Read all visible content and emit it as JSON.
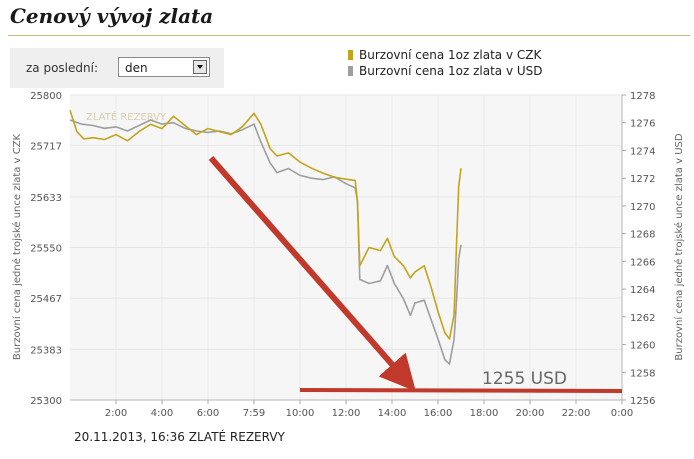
{
  "page": {
    "title": "Cenový vývoj zlata",
    "period_label": "za poslední:",
    "period_value": "den",
    "footer": "20.11.2013, 16:36 ZLATÉ REZERVY",
    "watermark": "ZLATÉ REZERVY"
  },
  "colors": {
    "czk": "#c3a41a",
    "usd": "#9e9e9e",
    "arrow": "#c0392b",
    "plot_bg": "#f6f6f6"
  },
  "chart_data": {
    "type": "line",
    "ylabel_left": "Burzovní cena jedné trojské unce zlata v CZK",
    "ylabel_right": "Burzovní cena jedné trojské unce zlata v USD",
    "x_ticks": [
      "2:00",
      "4:00",
      "6:00",
      "7:59",
      "10:00",
      "12:00",
      "14:00",
      "16:00",
      "18:00",
      "20:00",
      "22:00",
      "0:00"
    ],
    "x_tick_hours": [
      2,
      4,
      6,
      8,
      10,
      12,
      14,
      16,
      18,
      20,
      22,
      24
    ],
    "x_range": [
      0,
      24
    ],
    "ylim_left": [
      25300,
      25800
    ],
    "yticks_left": [
      "25300",
      "25383",
      "25467",
      "25550",
      "25633",
      "25717",
      "25800"
    ],
    "ylim_right": [
      1256,
      1278
    ],
    "yticks_right": [
      "1256",
      "1258",
      "1260",
      "1262",
      "1264",
      "1266",
      "1268",
      "1270",
      "1272",
      "1274",
      "1276",
      "1278"
    ],
    "annotation": "1255 USD",
    "series": [
      {
        "name": "Burzovní cena 1oz zlata v CZK",
        "axis": "left",
        "points": [
          [
            0,
            25775
          ],
          [
            0.3,
            25740
          ],
          [
            0.6,
            25728
          ],
          [
            1,
            25730
          ],
          [
            1.5,
            25727
          ],
          [
            2,
            25735
          ],
          [
            2.5,
            25725
          ],
          [
            3,
            25740
          ],
          [
            3.5,
            25752
          ],
          [
            4,
            25745
          ],
          [
            4.5,
            25765
          ],
          [
            5,
            25750
          ],
          [
            5.5,
            25735
          ],
          [
            6,
            25745
          ],
          [
            6.5,
            25740
          ],
          [
            7,
            25735
          ],
          [
            7.5,
            25748
          ],
          [
            8,
            25770
          ],
          [
            8.3,
            25752
          ],
          [
            8.7,
            25712
          ],
          [
            9,
            25700
          ],
          [
            9.5,
            25705
          ],
          [
            10,
            25690
          ],
          [
            10.5,
            25680
          ],
          [
            11,
            25672
          ],
          [
            11.5,
            25665
          ],
          [
            12,
            25662
          ],
          [
            12.4,
            25660
          ],
          [
            12.5,
            25625
          ],
          [
            12.6,
            25520
          ],
          [
            13,
            25550
          ],
          [
            13.5,
            25545
          ],
          [
            13.8,
            25565
          ],
          [
            14.1,
            25535
          ],
          [
            14.5,
            25520
          ],
          [
            14.8,
            25500
          ],
          [
            15,
            25510
          ],
          [
            15.4,
            25520
          ],
          [
            15.7,
            25485
          ],
          [
            16,
            25445
          ],
          [
            16.3,
            25410
          ],
          [
            16.5,
            25400
          ],
          [
            16.7,
            25440
          ],
          [
            16.8,
            25550
          ],
          [
            16.9,
            25650
          ],
          [
            17,
            25680
          ]
        ]
      },
      {
        "name": "Burzovní cena 1oz zlata v USD",
        "axis": "right",
        "points": [
          [
            0,
            1276.2
          ],
          [
            0.5,
            1275.9
          ],
          [
            1,
            1275.8
          ],
          [
            1.5,
            1275.6
          ],
          [
            2,
            1275.7
          ],
          [
            2.5,
            1275.4
          ],
          [
            3,
            1275.8
          ],
          [
            3.5,
            1276.2
          ],
          [
            4,
            1275.9
          ],
          [
            4.5,
            1276.0
          ],
          [
            5,
            1275.6
          ],
          [
            5.5,
            1275.4
          ],
          [
            6,
            1275.3
          ],
          [
            6.5,
            1275.4
          ],
          [
            7,
            1275.2
          ],
          [
            7.5,
            1275.5
          ],
          [
            8,
            1275.9
          ],
          [
            8.3,
            1274.6
          ],
          [
            8.7,
            1273.1
          ],
          [
            9,
            1272.4
          ],
          [
            9.5,
            1272.7
          ],
          [
            10,
            1272.2
          ],
          [
            10.5,
            1272.0
          ],
          [
            11,
            1271.9
          ],
          [
            11.5,
            1272.1
          ],
          [
            12,
            1271.6
          ],
          [
            12.4,
            1271.3
          ],
          [
            12.5,
            1270.3
          ],
          [
            12.6,
            1264.7
          ],
          [
            13,
            1264.4
          ],
          [
            13.5,
            1264.6
          ],
          [
            13.8,
            1265.7
          ],
          [
            14.1,
            1264.4
          ],
          [
            14.5,
            1263.3
          ],
          [
            14.8,
            1262.1
          ],
          [
            15,
            1263.0
          ],
          [
            15.4,
            1263.2
          ],
          [
            15.7,
            1261.8
          ],
          [
            16,
            1260.4
          ],
          [
            16.3,
            1258.9
          ],
          [
            16.5,
            1258.6
          ],
          [
            16.7,
            1260.4
          ],
          [
            16.8,
            1263.0
          ],
          [
            16.9,
            1266.2
          ],
          [
            17,
            1267.2
          ]
        ]
      }
    ]
  }
}
